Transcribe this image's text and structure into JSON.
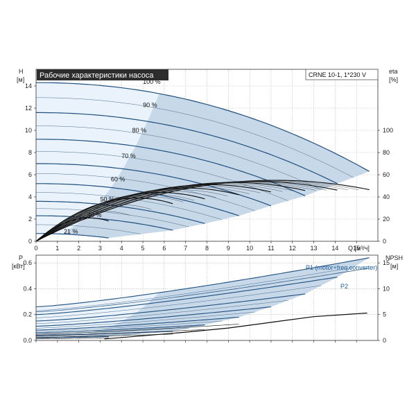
{
  "panel_title": "Рабочие характеристики насоса",
  "model_label": "CRNE 10-1, 1*230 V",
  "colors": {
    "curve": "#1f4f7f",
    "curve_dark": "#0a0a0a",
    "region_fill": "#c7d8e8",
    "region_light": "#eaf3fb",
    "grid": "#b8b8b8",
    "title_bg": "#2d2d2d"
  },
  "chart_data": [
    {
      "type": "line",
      "title": "Рабочие характеристики насоса",
      "ylabel_left": [
        "H",
        "[м]"
      ],
      "ylabel_right": [
        "eta",
        "[%]"
      ],
      "xlabel": "Q [м³/ч]",
      "xlim": [
        0,
        16
      ],
      "ylim": [
        0,
        15.5
      ],
      "y2lim": [
        0,
        155
      ],
      "x_ticks": [
        0,
        1,
        2,
        3,
        4,
        5,
        6,
        7,
        8,
        9,
        10,
        11,
        12,
        13,
        14,
        15
      ],
      "y_ticks": [
        0,
        2,
        4,
        6,
        8,
        10,
        12,
        14
      ],
      "y2_ticks": [
        0,
        20,
        40,
        60,
        80,
        100
      ],
      "grid": true,
      "speed_labels": [
        {
          "text": "100 %",
          "x": 5.0,
          "y": 14.2
        },
        {
          "text": "90 %",
          "x": 5.0,
          "y": 12.1
        },
        {
          "text": "80 %",
          "x": 4.5,
          "y": 9.8
        },
        {
          "text": "70 %",
          "x": 4.0,
          "y": 7.5
        },
        {
          "text": "60 %",
          "x": 3.5,
          "y": 5.4
        },
        {
          "text": "50 %",
          "x": 3.0,
          "y": 3.6
        },
        {
          "text": "40 %",
          "x": 2.4,
          "y": 2.2
        },
        {
          "text": "21 %",
          "x": 1.3,
          "y": 0.7
        }
      ],
      "head_curves": [
        {
          "speed": 100,
          "h0": 14.3,
          "qmax": 15.6,
          "hend": 6.3
        },
        {
          "speed": 90,
          "h0": 11.6,
          "qmax": 14.1,
          "hend": 5.2
        },
        {
          "speed": 80,
          "h0": 9.2,
          "qmax": 12.6,
          "hend": 4.1
        },
        {
          "speed": 70,
          "h0": 7.0,
          "qmax": 11.0,
          "hend": 3.2
        },
        {
          "speed": 60,
          "h0": 5.2,
          "qmax": 9.5,
          "hend": 2.3
        },
        {
          "speed": 50,
          "h0": 3.6,
          "qmax": 7.9,
          "hend": 1.6
        },
        {
          "speed": 40,
          "h0": 2.3,
          "qmax": 6.4,
          "hend": 1.0
        },
        {
          "speed": 21,
          "h0": 0.7,
          "qmax": 3.4,
          "hend": 0.3
        }
      ],
      "eff_curves": [
        {
          "speed": 100,
          "qmax": 15.6,
          "peak": 55,
          "qpeak": 11.2,
          "dark": true
        },
        {
          "speed": 90,
          "qmax": 14.1,
          "peak": 54,
          "qpeak": 10.2,
          "dark": true
        },
        {
          "speed": 80,
          "qmax": 12.6,
          "peak": 53,
          "qpeak": 9.2,
          "dark": true
        },
        {
          "speed": 70,
          "qmax": 11.0,
          "peak": 51,
          "qpeak": 8.1,
          "dark": true
        },
        {
          "speed": 60,
          "qmax": 9.5,
          "peak": 48,
          "qpeak": 7.0,
          "dark": true
        },
        {
          "speed": 50,
          "qmax": 7.9,
          "peak": 44,
          "qpeak": 5.8,
          "dark": true
        },
        {
          "speed": 40,
          "qmax": 6.4,
          "peak": 39,
          "qpeak": 4.7,
          "dark": true
        },
        {
          "speed": 21,
          "qmax": 3.4,
          "peak": 21,
          "qpeak": 2.5,
          "dark": true
        }
      ]
    },
    {
      "type": "line",
      "ylabel_left": [
        "P",
        "[кВт]"
      ],
      "ylabel_right": [
        "NPSH",
        "[м]"
      ],
      "xlim": [
        0,
        16
      ],
      "ylim": [
        0,
        0.66
      ],
      "y2lim": [
        0,
        16.5
      ],
      "y_ticks": [
        0.0,
        0.2,
        0.4,
        0.6
      ],
      "y_tick_labels": [
        "0.0",
        "0.2",
        "0.4",
        "0.6"
      ],
      "y2_ticks": [
        0,
        5,
        10,
        15
      ],
      "grid": true,
      "legend": [
        "P1 (motor+freq.converter)",
        "P2"
      ],
      "power_curves": [
        {
          "speed": 100,
          "p0": 0.26,
          "qmax": 15.6,
          "pend": 0.64,
          "p2end": 0.56
        },
        {
          "speed": 90,
          "p0": 0.2,
          "qmax": 14.1,
          "pend": 0.49
        },
        {
          "speed": 80,
          "p0": 0.15,
          "qmax": 12.6,
          "pend": 0.36
        },
        {
          "speed": 70,
          "p0": 0.11,
          "qmax": 11.0,
          "pend": 0.26
        },
        {
          "speed": 60,
          "p0": 0.08,
          "qmax": 9.5,
          "pend": 0.18
        },
        {
          "speed": 50,
          "p0": 0.06,
          "qmax": 7.9,
          "pend": 0.12
        },
        {
          "speed": 40,
          "p0": 0.04,
          "qmax": 6.4,
          "pend": 0.07
        },
        {
          "speed": 21,
          "p0": 0.02,
          "qmax": 3.4,
          "pend": 0.03
        }
      ],
      "npsh_curve": {
        "x": [
          3.2,
          5,
          7,
          9,
          11,
          13,
          15.5
        ],
        "y": [
          0.3,
          0.9,
          1.6,
          2.4,
          3.5,
          4.6,
          5.3
        ]
      }
    }
  ]
}
